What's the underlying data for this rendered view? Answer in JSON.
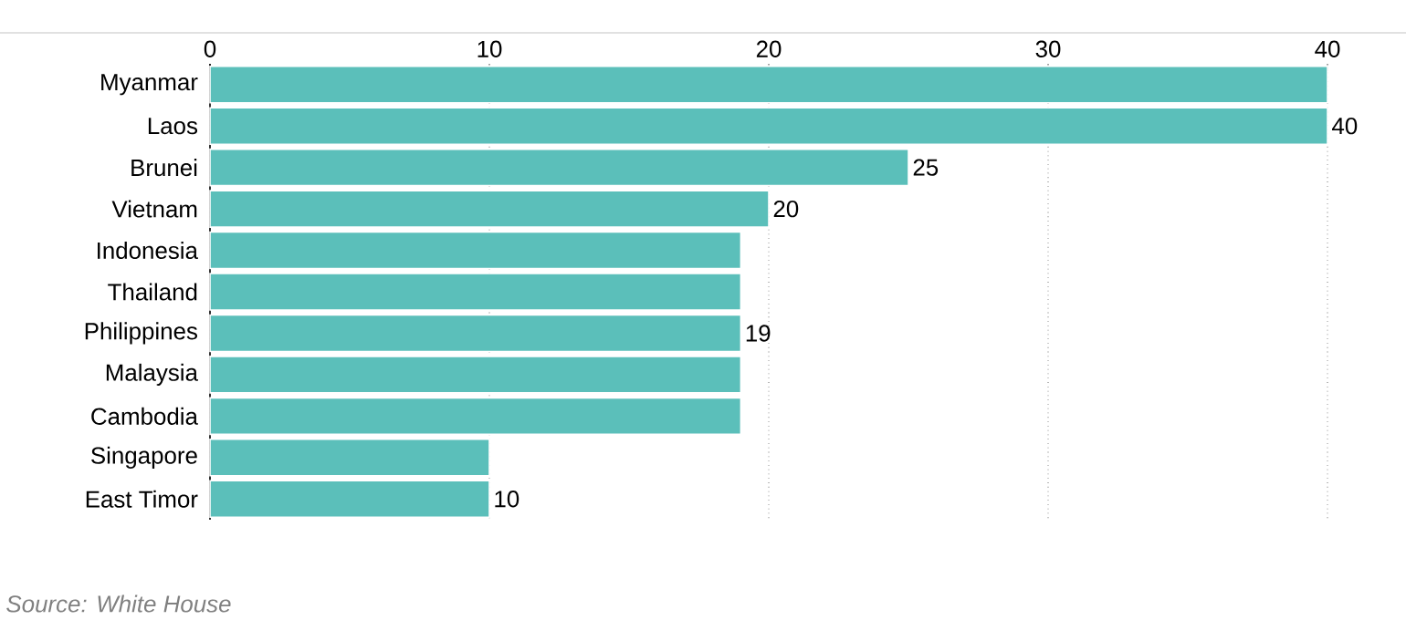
{
  "chart_data": {
    "type": "bar",
    "orientation": "horizontal",
    "categories": [
      "Myanmar",
      "Laos",
      "Brunei",
      "Vietnam",
      "Indonesia",
      "Thailand",
      "Philippines",
      "Malaysia",
      "Cambodia",
      "Singapore",
      "East Timor"
    ],
    "values": [
      40,
      40,
      25,
      20,
      19,
      19,
      19,
      19,
      19,
      10,
      10
    ],
    "value_labels": [
      null,
      "40",
      "25",
      "20",
      null,
      null,
      "19",
      null,
      null,
      null,
      "10"
    ],
    "color": "#5bbfba",
    "xlim": [
      0,
      40
    ],
    "xticks": [
      0,
      10,
      20,
      30,
      40
    ],
    "grid": "x",
    "annotations": [
      "Source: White House"
    ]
  }
}
